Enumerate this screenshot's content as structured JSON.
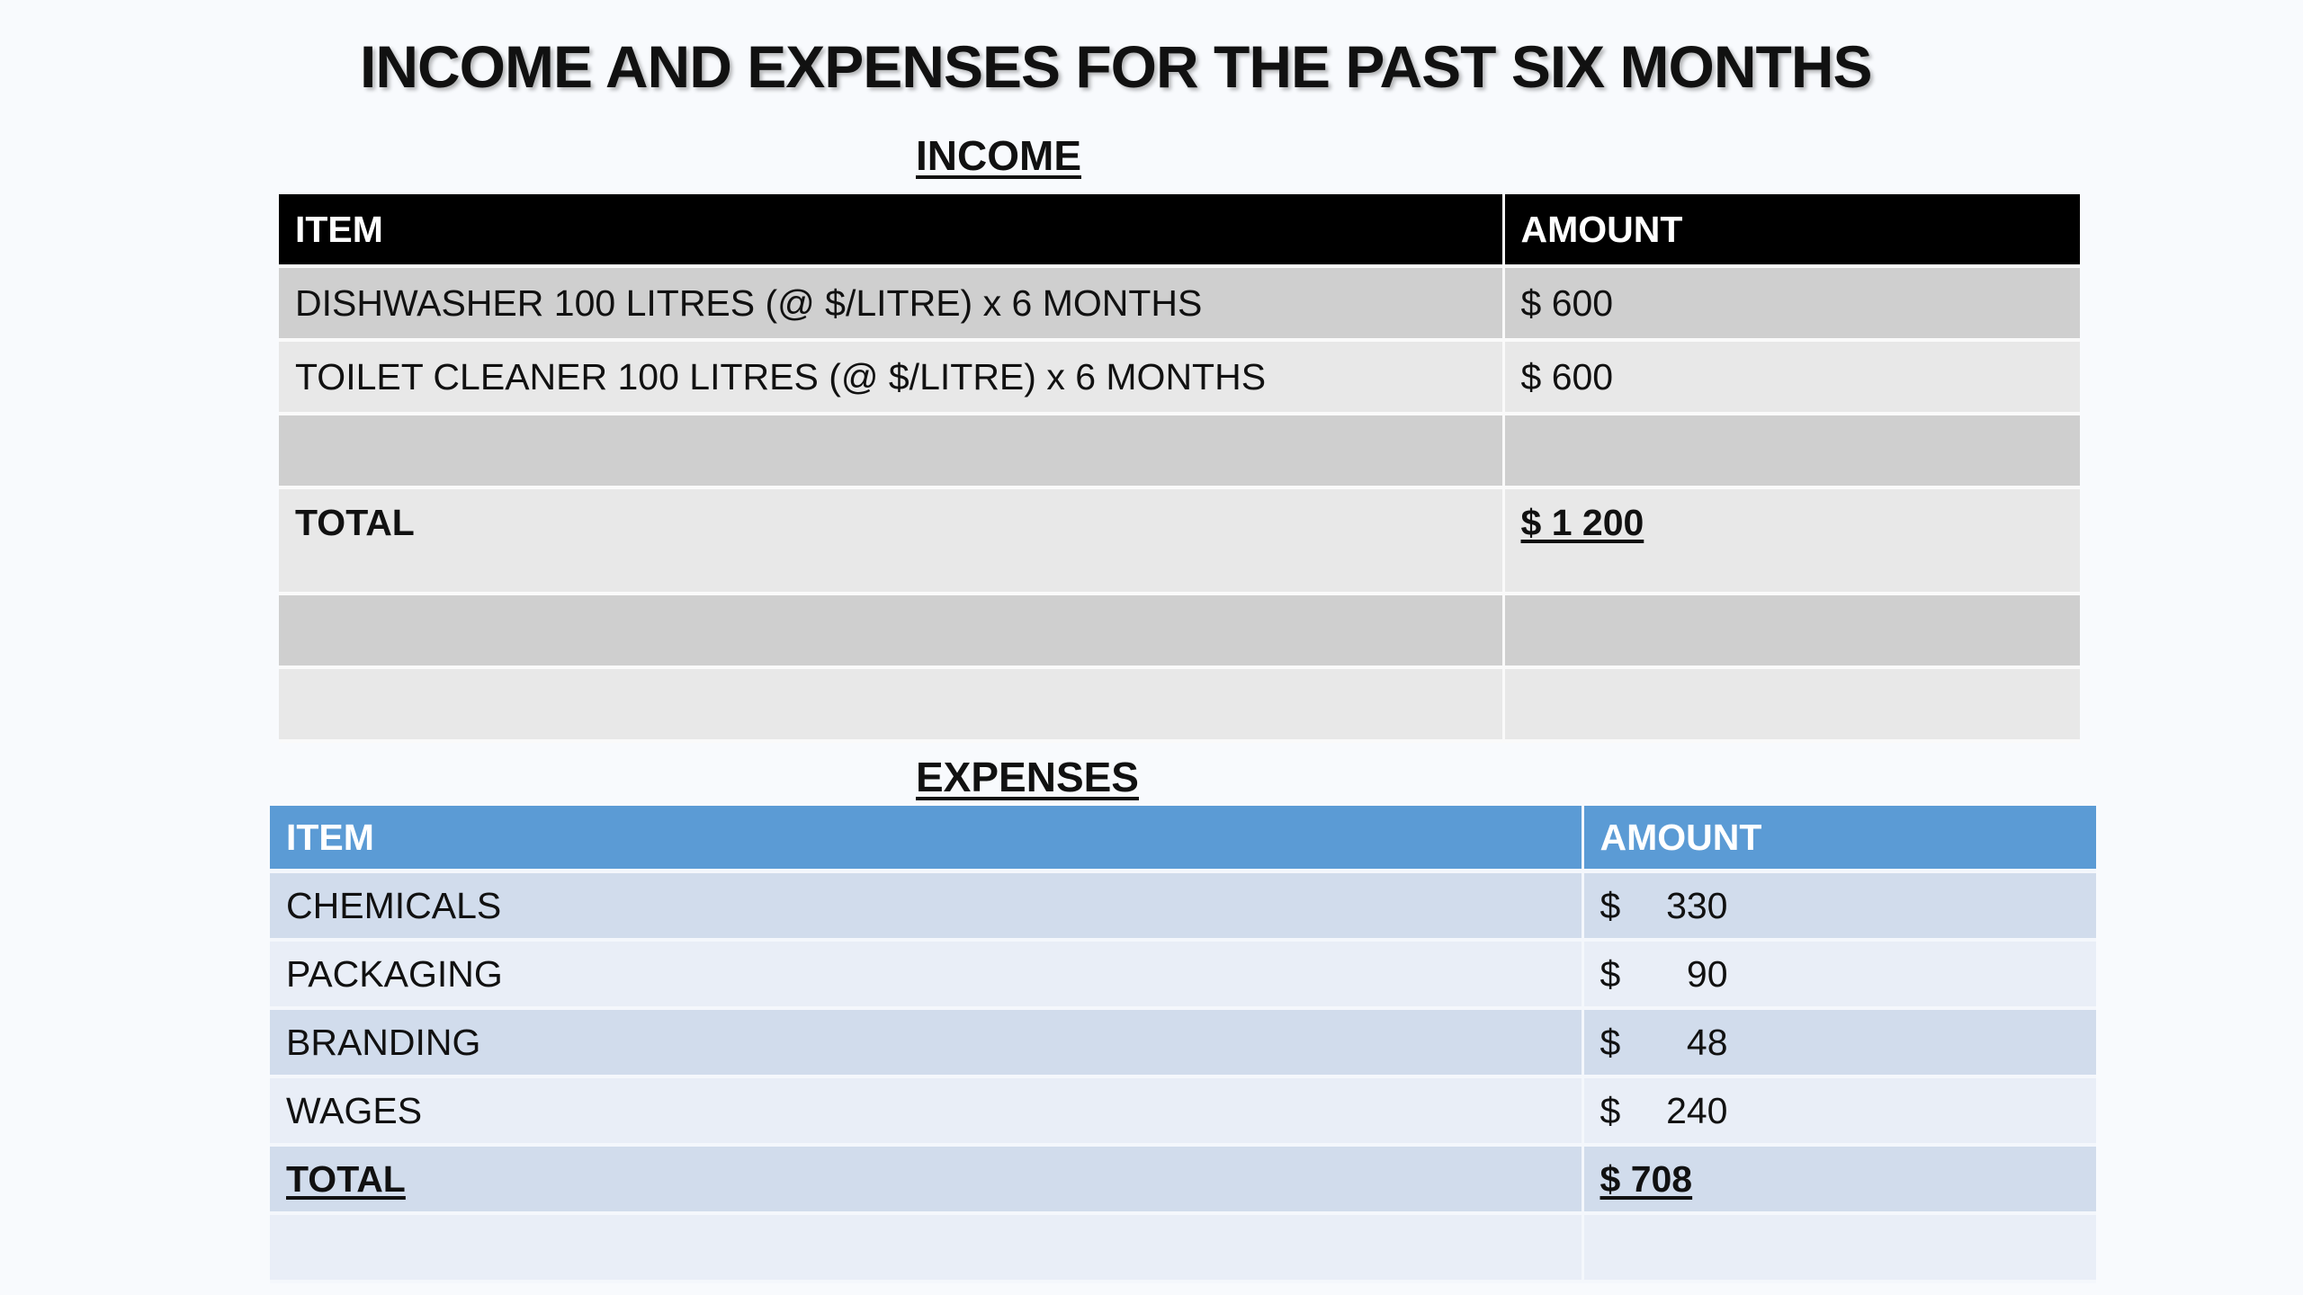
{
  "title": "INCOME AND EXPENSES FOR THE PAST SIX MONTHS",
  "income": {
    "heading": "INCOME",
    "columns": {
      "item": "ITEM",
      "amount": "AMOUNT"
    },
    "rows": [
      {
        "item": "DISHWASHER 100 LITRES (@ $/LITRE) x 6 MONTHS",
        "amount": "$ 600"
      },
      {
        "item": "TOILET CLEANER 100 LITRES (@ $/LITRE) x 6 MONTHS",
        "amount": "$ 600"
      }
    ],
    "total": {
      "label": "TOTAL",
      "amount": "$ 1 200"
    }
  },
  "expenses": {
    "heading": "EXPENSES",
    "columns": {
      "item": "ITEM",
      "amount": "AMOUNT"
    },
    "rows": [
      {
        "item": "CHEMICALS",
        "currency": "$",
        "amount": "330"
      },
      {
        "item": "PACKAGING",
        "currency": "$",
        "amount": "90"
      },
      {
        "item": "BRANDING",
        "currency": "$",
        "amount": "48"
      },
      {
        "item": "WAGES",
        "currency": "$",
        "amount": "240"
      }
    ],
    "total": {
      "label": "TOTAL",
      "amount": "$ 708"
    }
  },
  "colors": {
    "income_header_bg": "#000000",
    "expenses_header_bg": "#5b9bd5",
    "income_row_dark": "#cfcfcf",
    "income_row_light": "#e8e8e8",
    "expenses_row_dark": "#d1dcec",
    "expenses_row_light": "#e9eef7"
  }
}
